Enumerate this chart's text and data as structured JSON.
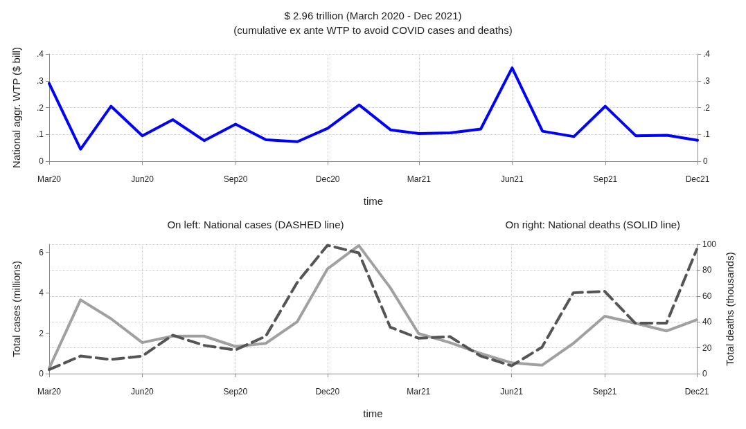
{
  "chart_data": [
    {
      "type": "line",
      "title": "$ 2.96 trillion (March 2020 - Dec 2021)",
      "subtitle": "(cumulative ex ante WTP to avoid COVID cases and deaths)",
      "xlabel": "time",
      "ylabel": "National aggr. WTP ($ bill)",
      "x": [
        "2020-03",
        "2020-04",
        "2020-05",
        "2020-06",
        "2020-07",
        "2020-08",
        "2020-09",
        "2020-10",
        "2020-11",
        "2020-12",
        "2021-01",
        "2021-02",
        "2021-03",
        "2021-04",
        "2021-05",
        "2021-06",
        "2021-07",
        "2021-08",
        "2021-09",
        "2021-10",
        "2021-11",
        "2021-12"
      ],
      "series": [
        {
          "color": "#0000ff",
          "values": [
            0.29,
            0.045,
            0.205,
            0.095,
            0.155,
            0.077,
            0.138,
            0.08,
            0.073,
            0.123,
            0.21,
            0.117,
            0.103,
            0.106,
            0.12,
            0.348,
            0.112,
            0.092,
            0.205,
            0.095,
            0.097,
            0.078
          ]
        }
      ],
      "xlim": [
        "2020-03",
        "2021-12"
      ],
      "xticks": [
        {
          "value": "2020-03",
          "label": "Mar20"
        },
        {
          "value": "2020-06",
          "label": "Jun20"
        },
        {
          "value": "2020-09",
          "label": "Sep20"
        },
        {
          "value": "2020-12",
          "label": "Dec20"
        },
        {
          "value": "2021-03",
          "label": "Mar21"
        },
        {
          "value": "2021-06",
          "label": "Jun21"
        },
        {
          "value": "2021-09",
          "label": "Sep21"
        },
        {
          "value": "2021-12",
          "label": "Dec21"
        }
      ],
      "ylim": [
        0,
        0.4
      ],
      "yticks": [
        0,
        {
          "value": 0.1,
          "label": ".1"
        },
        {
          "value": 0.2,
          "label": ".2"
        },
        {
          "value": 0.3,
          "label": ".3"
        },
        {
          "value": 0.4,
          "label": ".4"
        }
      ],
      "y2lim": [
        0,
        0.4
      ],
      "y2ticks": [
        0,
        {
          "value": 0.1,
          "label": ".1"
        },
        {
          "value": 0.2,
          "label": ".2"
        },
        {
          "value": 0.3,
          "label": ".3"
        },
        {
          "value": 0.4,
          "label": ".4"
        }
      ],
      "grid": true,
      "marker": "none"
    },
    {
      "type": "line",
      "xlabel": "time",
      "ylabel": "Total cases (millions)",
      "y2label": "Total deaths (thousands)",
      "annotations": [
        "On left: National cases (DASHED line)",
        "On right: National deaths (SOLID line)"
      ],
      "x": [
        "2020-03",
        "2020-04",
        "2020-05",
        "2020-06",
        "2020-07",
        "2020-08",
        "2020-09",
        "2020-10",
        "2020-11",
        "2020-12",
        "2021-01",
        "2021-02",
        "2021-03",
        "2021-04",
        "2021-05",
        "2021-06",
        "2021-07",
        "2021-08",
        "2021-09",
        "2021-10",
        "2021-11",
        "2021-12"
      ],
      "series": [
        {
          "color": "#a0a0a0",
          "axis": "y2",
          "line_style": "solid",
          "values": [
            4.2,
            57,
            42.5,
            24,
            29,
            29,
            21,
            23.4,
            40,
            81,
            99,
            66.5,
            31,
            24,
            15.7,
            8.4,
            6.5,
            23.4,
            44.4,
            39,
            33,
            41.6
          ]
        },
        {
          "color": "#555555",
          "line_style": "dashed",
          "values": [
            0.2,
            0.87,
            0.7,
            0.87,
            1.9,
            1.4,
            1.17,
            1.85,
            4.5,
            6.35,
            5.97,
            2.3,
            1.75,
            1.83,
            0.88,
            0.39,
            1.31,
            4.0,
            4.07,
            2.5,
            2.5,
            6.15
          ]
        }
      ],
      "xlim": [
        "2020-03",
        "2021-12"
      ],
      "xticks": [
        {
          "value": "2020-03",
          "label": "Mar20"
        },
        {
          "value": "2020-06",
          "label": "Jun20"
        },
        {
          "value": "2020-09",
          "label": "Sep20"
        },
        {
          "value": "2020-12",
          "label": "Dec20"
        },
        {
          "value": "2021-03",
          "label": "Mar21"
        },
        {
          "value": "2021-06",
          "label": "Jun21"
        },
        {
          "value": "2021-09",
          "label": "Sep21"
        },
        {
          "value": "2021-12",
          "label": "Dec21"
        }
      ],
      "ylim": [
        0,
        6.4
      ],
      "yticks": [
        0,
        2,
        4,
        6
      ],
      "y2lim": [
        0,
        100
      ],
      "y2ticks": [
        0,
        20,
        40,
        60,
        80,
        100
      ],
      "grid": true,
      "marker": "none"
    }
  ]
}
